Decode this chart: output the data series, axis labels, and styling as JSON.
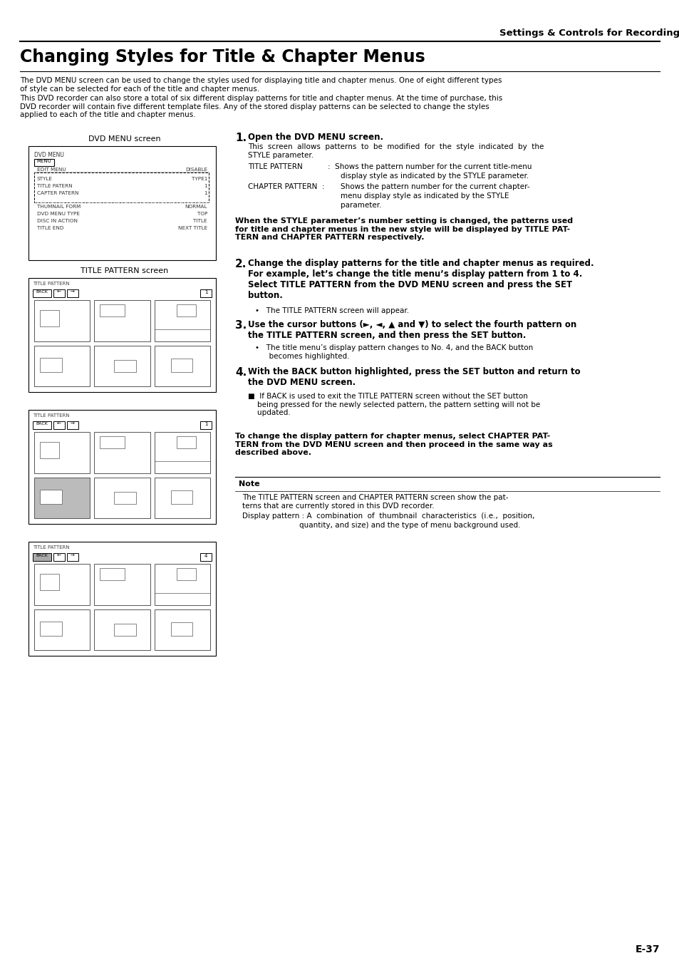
{
  "page_title": "Settings & Controls for Recording",
  "section_title": "Changing Styles for Title & Chapter Menus",
  "intro_text1": "The DVD MENU screen can be used to change the styles used for displaying title and chapter menus. One of eight different types\nof style can be selected for each of the title and chapter menus.",
  "intro_text2": "This DVD recorder can also store a total of six different display patterns for title and chapter menus. At the time of purchase, this\nDVD recorder will contain five different template files. Any of the stored display patterns can be selected to change the styles\napplied to each of the title and chapter menus.",
  "dvd_menu_label": "DVD MENU screen",
  "title_pattern_label": "TITLE PATTERN screen",
  "page_number": "E-37",
  "background_color": "#ffffff"
}
